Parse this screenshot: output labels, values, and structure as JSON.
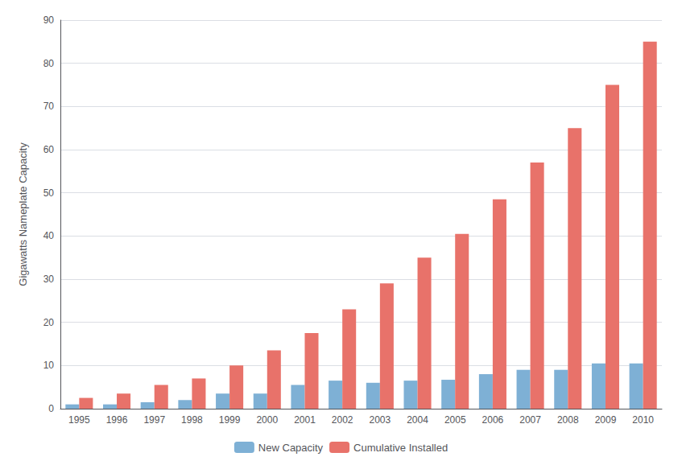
{
  "chart_data": {
    "type": "bar",
    "categories": [
      "1995",
      "1996",
      "1997",
      "1998",
      "1999",
      "2000",
      "2001",
      "2002",
      "2003",
      "2004",
      "2005",
      "2006",
      "2007",
      "2008",
      "2009",
      "2010"
    ],
    "series": [
      {
        "name": "New Capacity",
        "color": "#7EB0D5",
        "values": [
          1.0,
          1.0,
          1.5,
          2.0,
          3.5,
          3.5,
          5.5,
          6.5,
          6.0,
          6.5,
          6.7,
          8.0,
          9.0,
          9.0,
          10.5,
          10.5
        ]
      },
      {
        "name": "Cumulative Installed",
        "color": "#E8726A",
        "values": [
          2.5,
          3.5,
          5.5,
          7.0,
          10.0,
          13.5,
          17.5,
          23.0,
          29.0,
          35.0,
          40.5,
          48.5,
          57.0,
          65.0,
          75.0,
          85.0
        ]
      }
    ],
    "ylabel": "Gigawatts Nameplate Capacity",
    "ylim": [
      0,
      90
    ],
    "yticks": [
      0,
      10,
      20,
      30,
      40,
      50,
      60,
      70,
      80,
      90
    ],
    "grid": true,
    "legend": "bottom"
  }
}
